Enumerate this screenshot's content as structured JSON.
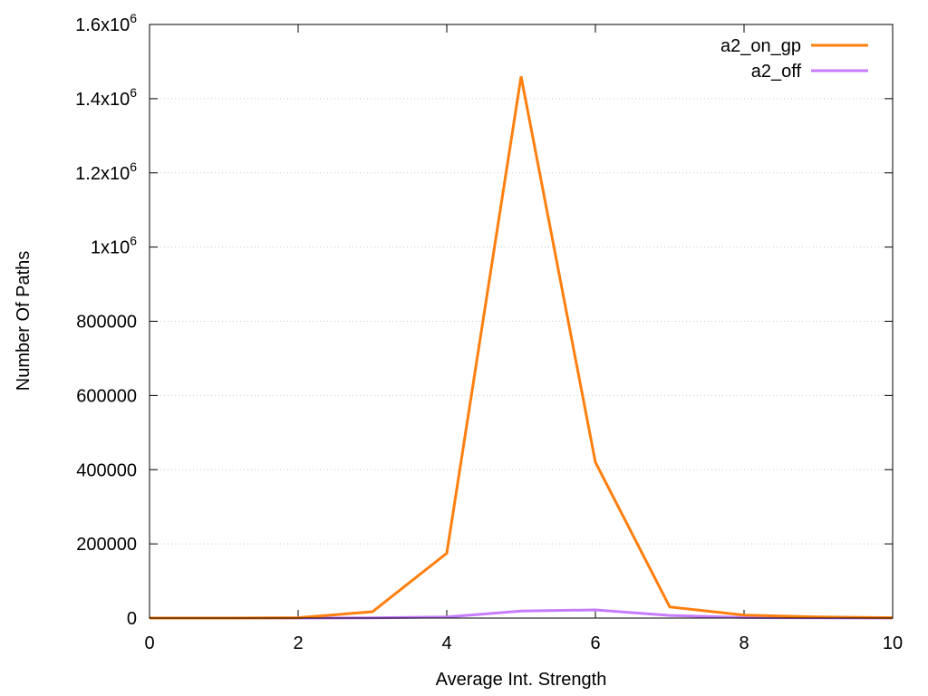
{
  "chart_data": {
    "type": "line",
    "xlabel": "Average Int. Strength",
    "ylabel": "Number Of Paths",
    "xlim": [
      0,
      10
    ],
    "ylim": [
      0,
      1600000
    ],
    "grid": "horizontal dotted",
    "legend_position": "top-right",
    "x_ticks": [
      {
        "value": 0,
        "label": "0"
      },
      {
        "value": 2,
        "label": "2"
      },
      {
        "value": 4,
        "label": "4"
      },
      {
        "value": 6,
        "label": "6"
      },
      {
        "value": 8,
        "label": "8"
      },
      {
        "value": 10,
        "label": "10"
      }
    ],
    "y_ticks": [
      {
        "value": 0,
        "label": "0"
      },
      {
        "value": 200000,
        "label": "200000"
      },
      {
        "value": 400000,
        "label": "400000"
      },
      {
        "value": 600000,
        "label": "600000"
      },
      {
        "value": 800000,
        "label": "800000"
      },
      {
        "value": 1000000,
        "label": "1x10",
        "sup": "6"
      },
      {
        "value": 1200000,
        "label": "1.2x10",
        "sup": "6"
      },
      {
        "value": 1400000,
        "label": "1.4x10",
        "sup": "6"
      },
      {
        "value": 1600000,
        "label": "1.6x10",
        "sup": "6"
      }
    ],
    "x": [
      0,
      1,
      2,
      3,
      4,
      5,
      6,
      7,
      8,
      9,
      10
    ],
    "series": [
      {
        "name": "a2_on_gp",
        "color": "#ff7f0e",
        "values": [
          0,
          0,
          1000,
          17000,
          175000,
          1460000,
          420000,
          30000,
          8000,
          3000,
          1000
        ]
      },
      {
        "name": "a2_off",
        "color": "#c77cff",
        "values": [
          0,
          0,
          0,
          500,
          3000,
          19000,
          22000,
          7000,
          1500,
          500,
          0
        ]
      }
    ]
  }
}
